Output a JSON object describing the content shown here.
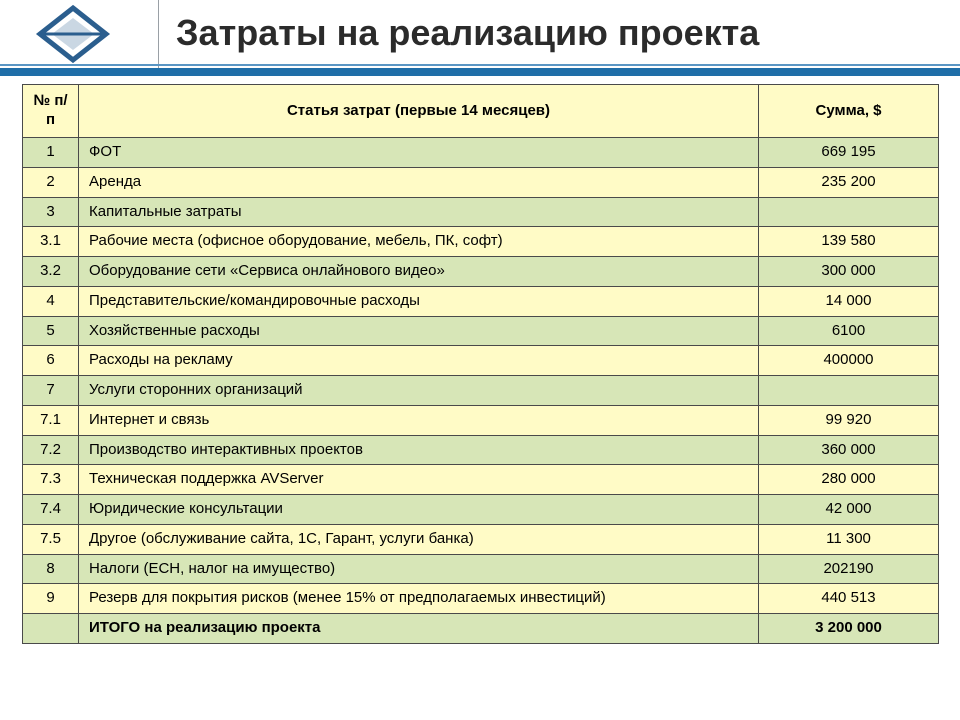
{
  "title": "Затраты на реализацию проекта",
  "table": {
    "header": {
      "num": "№ п/п",
      "name": "Статья затрат (первые 14 месяцев)",
      "sum": "Сумма, $"
    },
    "rows": [
      {
        "num": "1",
        "name": "ФОТ",
        "sum": "669 195",
        "shade": "odd"
      },
      {
        "num": "2",
        "name": "Аренда",
        "sum": "235 200",
        "shade": "even"
      },
      {
        "num": "3",
        "name": "Капитальные затраты",
        "sum": "",
        "shade": "odd"
      },
      {
        "num": "3.1",
        "name": "Рабочие места (офисное оборудование, мебель, ПК, софт)",
        "sum": "139 580",
        "shade": "even"
      },
      {
        "num": "3.2",
        "name": "Оборудование сети «Сервиса онлайнового видео»",
        "sum": "300 000",
        "shade": "odd"
      },
      {
        "num": "4",
        "name": "Представительские/командировочные расходы",
        "sum": "14 000",
        "shade": "even"
      },
      {
        "num": "5",
        "name": "Хозяйственные расходы",
        "sum": "6100",
        "shade": "odd"
      },
      {
        "num": "6",
        "name": "Расходы на рекламу",
        "sum": "400000",
        "shade": "even"
      },
      {
        "num": "7",
        "name": "Услуги сторонних организаций",
        "sum": "",
        "shade": "odd"
      },
      {
        "num": "7.1",
        "name": "Интернет и связь",
        "sum": "99 920",
        "shade": "even"
      },
      {
        "num": "7.2",
        "name": "Производство интерактивных проектов",
        "sum": "360 000",
        "shade": "odd"
      },
      {
        "num": "7.3",
        "name": "Техническая поддержка AVServer",
        "sum": "280 000",
        "shade": "even"
      },
      {
        "num": "7.4",
        "name": "Юридические консультации",
        "sum": "42 000",
        "shade": "odd"
      },
      {
        "num": "7.5",
        "name": "Другое (обслуживание сайта, 1С, Гарант, услуги банка)",
        "sum": "11 300",
        "shade": "even"
      },
      {
        "num": "8",
        "name": "Налоги (ЕСН, налог на имущество)",
        "sum": "202190",
        "shade": "odd"
      },
      {
        "num": "9",
        "name": "Резерв для покрытия рисков (менее 15% от предполагаемых инвестиций)",
        "sum": "440 513",
        "shade": "even"
      },
      {
        "num": "",
        "name": "ИТОГО на реализацию проекта",
        "sum": "3 200 000",
        "shade": "odd",
        "total": true
      }
    ]
  },
  "colors": {
    "rule": "#1f6ea8",
    "header_bg": "#fffbc6",
    "odd_bg": "#d7e6b7",
    "even_bg": "#fffbc6",
    "border": "#4a4a4a"
  }
}
